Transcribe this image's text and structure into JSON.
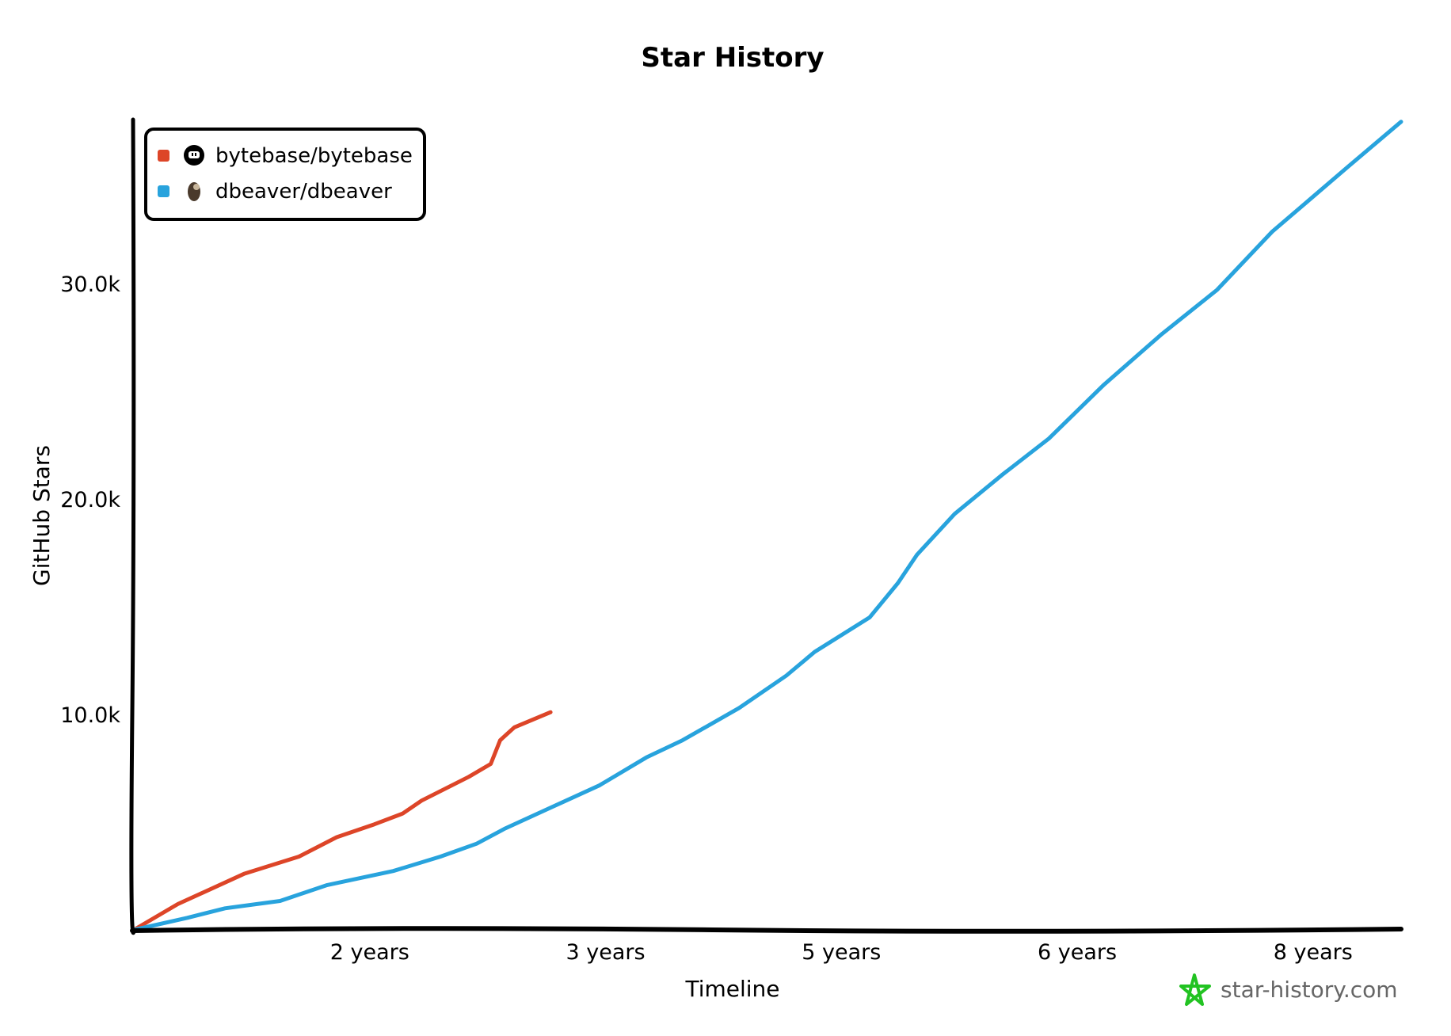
{
  "chart_data": {
    "type": "line",
    "title": "Star History",
    "xlabel": "Timeline",
    "ylabel": "GitHub Stars",
    "xlim": [
      0,
      8.06
    ],
    "ylim": [
      0,
      37600
    ],
    "grid": false,
    "legend_position": "top-left",
    "x_ticks": [
      {
        "value": 1.5,
        "label": "2 years"
      },
      {
        "value": 3.0,
        "label": "3 years"
      },
      {
        "value": 4.5,
        "label": "5 years"
      },
      {
        "value": 6.0,
        "label": "6 years"
      },
      {
        "value": 7.5,
        "label": "8 years"
      }
    ],
    "y_ticks": [
      {
        "value": 10000,
        "label": "10.0k"
      },
      {
        "value": 20000,
        "label": "20.0k"
      },
      {
        "value": 30000,
        "label": "30.0k"
      }
    ],
    "series": [
      {
        "name": "bytebase/bytebase",
        "icon": "github-icon",
        "color": "#dd4528",
        "x": [
          0,
          0.28,
          0.7,
          1.05,
          1.29,
          1.53,
          1.71,
          1.83,
          2.13,
          2.27,
          2.33,
          2.42,
          2.65
        ],
        "y": [
          0,
          1200,
          2600,
          3400,
          4300,
          4900,
          5400,
          6000,
          7100,
          7700,
          8800,
          9400,
          10100
        ]
      },
      {
        "name": "dbeaver/dbeaver",
        "icon": "beaver-icon",
        "color": "#28a3dd",
        "x": [
          0,
          0.34,
          0.58,
          0.93,
          1.23,
          1.65,
          1.95,
          2.18,
          2.36,
          2.66,
          2.96,
          3.26,
          3.49,
          3.85,
          4.15,
          4.33,
          4.68,
          4.86,
          4.98,
          5.22,
          5.52,
          5.82,
          6.17,
          6.53,
          6.89,
          7.24,
          7.48,
          7.72,
          8.06
        ],
        "y": [
          0,
          560,
          1000,
          1340,
          2080,
          2730,
          3400,
          4000,
          4700,
          5700,
          6700,
          8000,
          8800,
          10300,
          11800,
          12900,
          14500,
          16100,
          17400,
          19300,
          21100,
          22800,
          25300,
          27600,
          29700,
          32400,
          33900,
          35400,
          37500
        ]
      }
    ]
  },
  "watermark": {
    "text": "star-history.com",
    "icon": "star-icon",
    "color": "#22c322"
  }
}
